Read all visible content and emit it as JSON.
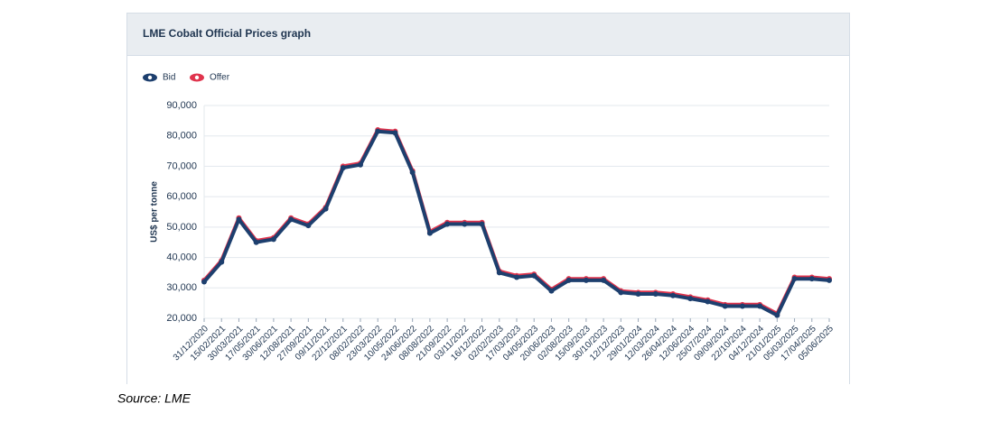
{
  "chart_data": {
    "type": "line",
    "title": "LME Cobalt Official Prices graph",
    "y_label": "US$ per tonne",
    "source": "Source: LME",
    "categories": [
      "31/12/2020",
      "15/02/2021",
      "30/03/2021",
      "17/05/2021",
      "30/06/2021",
      "12/08/2021",
      "27/09/2021",
      "09/11/2021",
      "22/12/2021",
      "08/02/2022",
      "23/03/2022",
      "10/05/2022",
      "24/06/2022",
      "08/08/2022",
      "21/09/2022",
      "03/11/2022",
      "16/12/2022",
      "02/02/2023",
      "17/03/2023",
      "04/05/2023",
      "20/06/2023",
      "02/08/2023",
      "15/09/2023",
      "30/10/2023",
      "12/12/2023",
      "29/01/2024",
      "12/03/2024",
      "26/04/2024",
      "12/06/2024",
      "25/07/2024",
      "09/09/2024",
      "22/10/2024",
      "04/12/2024",
      "21/01/2025",
      "05/03/2025",
      "17/04/2025",
      "05/06/2025"
    ],
    "series": [
      {
        "name": "Offer",
        "color": "#e0344d",
        "values": [
          32500,
          39000,
          53000,
          45500,
          46500,
          53000,
          51000,
          56500,
          70000,
          71000,
          82000,
          81500,
          68500,
          48500,
          51500,
          51500,
          51500,
          35500,
          34000,
          34500,
          29500,
          33000,
          33000,
          33000,
          29000,
          28500,
          28500,
          28000,
          27000,
          26000,
          24500,
          24500,
          24500,
          21500,
          33500,
          33500,
          33000
        ]
      },
      {
        "name": "Bid",
        "color": "#1d3f6e",
        "values": [
          32000,
          38500,
          52500,
          45000,
          46000,
          52500,
          50500,
          56000,
          69500,
          70500,
          81500,
          81000,
          68000,
          48000,
          51000,
          51000,
          51000,
          35000,
          33500,
          34000,
          29000,
          32500,
          32500,
          32500,
          28500,
          28000,
          28000,
          27500,
          26500,
          25500,
          24000,
          24000,
          24000,
          21000,
          33000,
          33000,
          32500
        ]
      }
    ],
    "ylim": [
      20000,
      90000
    ],
    "yticks": [
      {
        "value": 20000,
        "label": "20,000"
      },
      {
        "value": 30000,
        "label": "30,000"
      },
      {
        "value": 40000,
        "label": "40,000"
      },
      {
        "value": 50000,
        "label": "50,000"
      },
      {
        "value": 60000,
        "label": "60,000"
      },
      {
        "value": 70000,
        "label": "70,000"
      },
      {
        "value": 80000,
        "label": "80,000"
      },
      {
        "value": 90000,
        "label": "90,000"
      }
    ],
    "grid": true
  }
}
